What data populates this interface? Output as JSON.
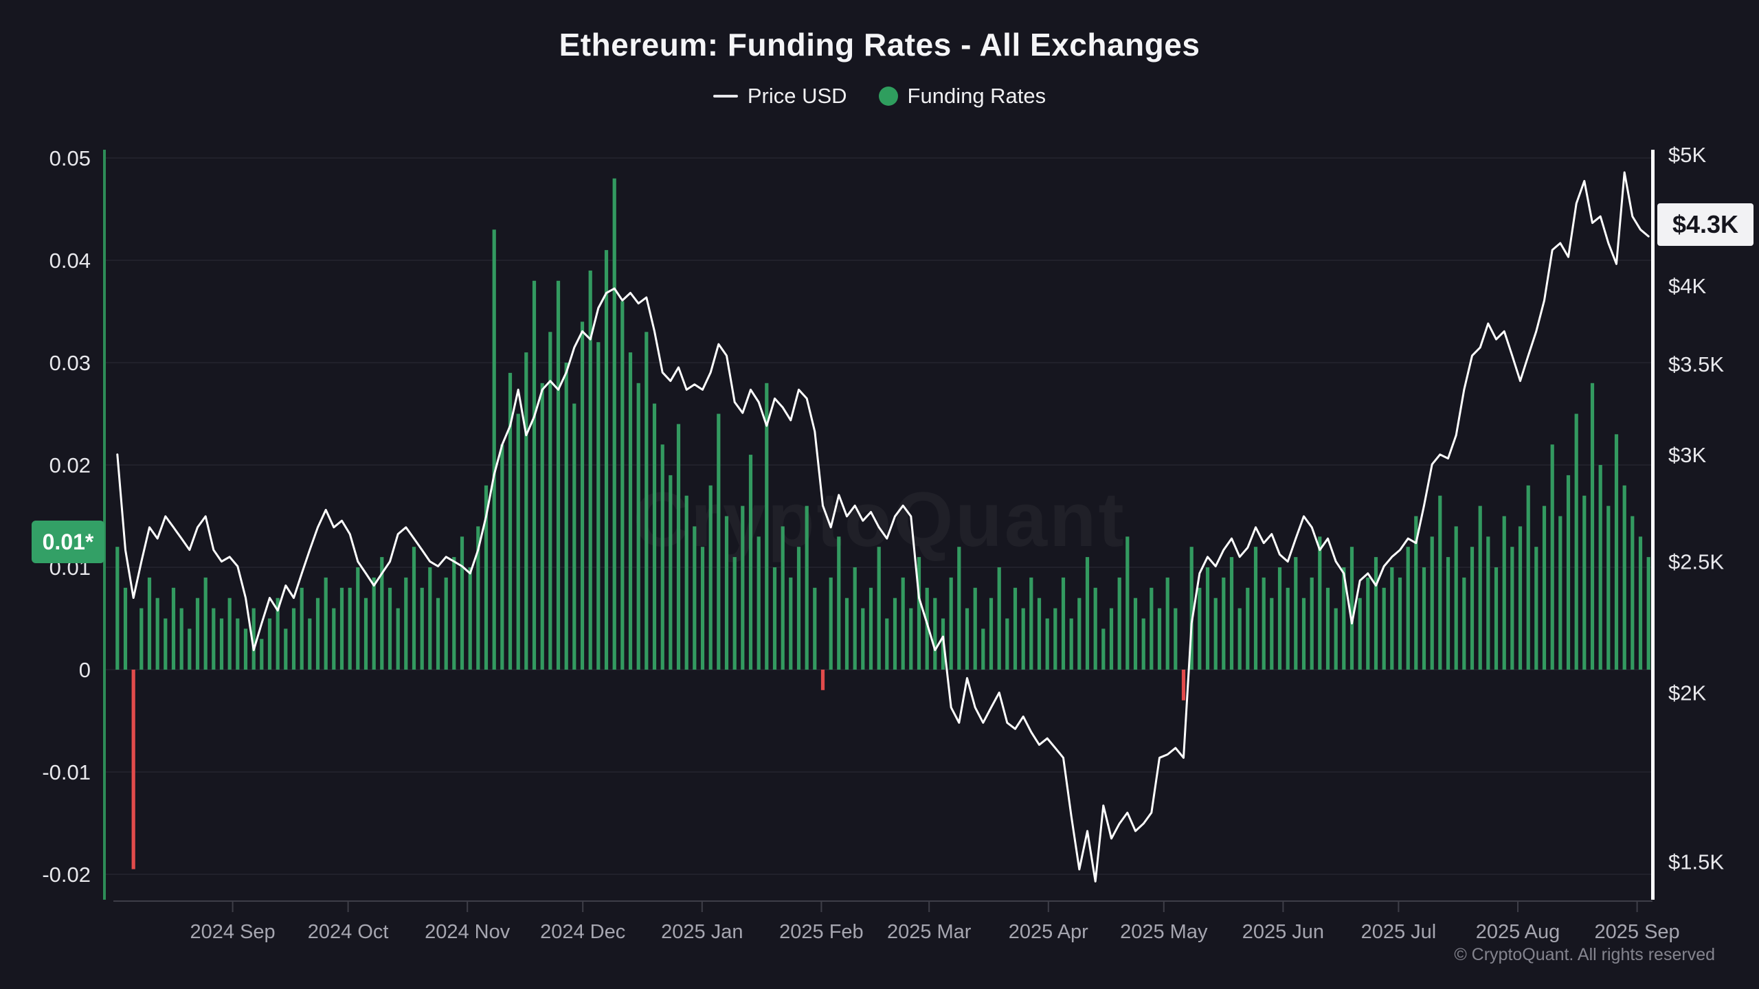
{
  "title": "Ethereum: Funding Rates - All Exchanges",
  "legend": {
    "price_label": "Price USD",
    "funding_label": "Funding Rates"
  },
  "watermark": "CryptoQuant",
  "footer": {
    "copyright": "© CryptoQuant. All rights reserved"
  },
  "colors": {
    "background": "#16161f",
    "bar_positive": "#339a60",
    "bar_negative": "#e14b4b",
    "price_line": "#ffffff",
    "left_axis_line": "#2d8c57",
    "right_axis_line": "#ffffff",
    "gridline": "#21212b",
    "axis_baseline": "#3e3e48",
    "x_label": "#a6a6b0",
    "y_label": "#e8e8ec",
    "left_badge_bg": "#33a066",
    "left_badge_text": "#ffffff",
    "right_badge_bg": "#f2f2f4",
    "right_badge_text": "#15151d",
    "watermark_text": "rgba(255,255,255,0.042)",
    "legend_dot": "#2f9e5e"
  },
  "left_axis": {
    "badge": "0.01*",
    "ticks": [
      {
        "label": "0.05",
        "value": 0.05
      },
      {
        "label": "0.04",
        "value": 0.04
      },
      {
        "label": "0.03",
        "value": 0.03
      },
      {
        "label": "0.02",
        "value": 0.02
      },
      {
        "label": "0.01",
        "value": 0.01
      },
      {
        "label": "0",
        "value": 0
      },
      {
        "label": "-0.01",
        "value": -0.01
      },
      {
        "label": "-0.02",
        "value": -0.02
      }
    ]
  },
  "right_axis": {
    "badge": "$4.3K",
    "ticks": [
      {
        "label": "$5K",
        "value": 5000
      },
      {
        "label": "$4K",
        "value": 4000
      },
      {
        "label": "$3.5K",
        "value": 3500
      },
      {
        "label": "$3K",
        "value": 3000
      },
      {
        "label": "$2.5K",
        "value": 2500
      },
      {
        "label": "$2K",
        "value": 2000
      },
      {
        "label": "$1.5K",
        "value": 1500
      }
    ]
  },
  "x_axis": {
    "labels": [
      "2024 Sep",
      "2024 Oct",
      "2024 Nov",
      "2024 Dec",
      "2025 Jan",
      "2025 Feb",
      "2025 Mar",
      "2025 Apr",
      "2025 May",
      "2025 Jun",
      "2025 Jul",
      "2025 Aug",
      "2025 Sep"
    ],
    "day_offsets": [
      31,
      61,
      92,
      122,
      153,
      184,
      212,
      243,
      273,
      304,
      334,
      365,
      396
    ],
    "total_days": 400
  },
  "chart_data": {
    "type": "mixed",
    "subtypes": [
      "bar",
      "line"
    ],
    "title": "Ethereum: Funding Rates - All Exchanges",
    "x_start": "2024 Aug",
    "x_end": "2025 Sep",
    "left_axis_label": "Funding Rates",
    "right_axis_label": "Price USD",
    "left_ylim": [
      -0.0255,
      0.0508
    ],
    "right_ylim_log": [
      1380,
      5100
    ],
    "grid": "horizontal-faint",
    "legend_position": "top-center",
    "latest_funding_rate": 0.01,
    "latest_price_usd": 4300,
    "series": [
      {
        "name": "Funding Rates",
        "type": "bar",
        "values": [
          0.012,
          0.008,
          -0.0195,
          0.006,
          0.009,
          0.007,
          0.005,
          0.008,
          0.006,
          0.004,
          0.007,
          0.009,
          0.006,
          0.005,
          0.007,
          0.005,
          0.004,
          0.006,
          0.003,
          0.005,
          0.007,
          0.004,
          0.006,
          0.008,
          0.005,
          0.007,
          0.009,
          0.006,
          0.008,
          0.008,
          0.01,
          0.007,
          0.009,
          0.011,
          0.008,
          0.006,
          0.009,
          0.012,
          0.008,
          0.01,
          0.007,
          0.009,
          0.011,
          0.013,
          0.01,
          0.014,
          0.018,
          0.043,
          0.022,
          0.029,
          0.025,
          0.031,
          0.038,
          0.028,
          0.033,
          0.038,
          0.03,
          0.026,
          0.034,
          0.039,
          0.032,
          0.041,
          0.048,
          0.036,
          0.031,
          0.028,
          0.033,
          0.026,
          0.022,
          0.019,
          0.024,
          0.017,
          0.014,
          0.012,
          0.018,
          0.025,
          0.015,
          0.011,
          0.016,
          0.021,
          0.013,
          0.028,
          0.01,
          0.014,
          0.009,
          0.012,
          0.016,
          0.008,
          -0.002,
          0.009,
          0.013,
          0.007,
          0.01,
          0.006,
          0.008,
          0.012,
          0.005,
          0.007,
          0.009,
          0.006,
          0.011,
          0.008,
          0.007,
          0.005,
          0.009,
          0.012,
          0.006,
          0.008,
          0.004,
          0.007,
          0.01,
          0.005,
          0.008,
          0.006,
          0.009,
          0.007,
          0.005,
          0.006,
          0.009,
          0.005,
          0.007,
          0.011,
          0.008,
          0.004,
          0.006,
          0.009,
          0.013,
          0.007,
          0.005,
          0.008,
          0.006,
          0.009,
          0.006,
          -0.003,
          0.012,
          0.008,
          0.01,
          0.007,
          0.009,
          0.011,
          0.006,
          0.008,
          0.012,
          0.009,
          0.007,
          0.01,
          0.008,
          0.011,
          0.007,
          0.009,
          0.013,
          0.008,
          0.006,
          0.01,
          0.012,
          0.007,
          0.009,
          0.011,
          0.008,
          0.01,
          0.009,
          0.012,
          0.015,
          0.01,
          0.013,
          0.017,
          0.011,
          0.014,
          0.009,
          0.012,
          0.016,
          0.013,
          0.01,
          0.015,
          0.012,
          0.014,
          0.018,
          0.012,
          0.016,
          0.022,
          0.015,
          0.019,
          0.025,
          0.017,
          0.028,
          0.02,
          0.016,
          0.023,
          0.018,
          0.015,
          0.013,
          0.011
        ]
      },
      {
        "name": "Price USD",
        "type": "line",
        "values": [
          3000,
          2550,
          2350,
          2500,
          2650,
          2600,
          2700,
          2650,
          2600,
          2550,
          2650,
          2700,
          2550,
          2500,
          2520,
          2480,
          2350,
          2150,
          2250,
          2350,
          2300,
          2400,
          2350,
          2450,
          2550,
          2650,
          2730,
          2650,
          2680,
          2620,
          2500,
          2450,
          2400,
          2450,
          2500,
          2620,
          2650,
          2600,
          2550,
          2500,
          2480,
          2520,
          2500,
          2480,
          2450,
          2550,
          2700,
          2900,
          3050,
          3150,
          3350,
          3100,
          3200,
          3350,
          3400,
          3350,
          3450,
          3600,
          3700,
          3650,
          3850,
          3950,
          3980,
          3900,
          3950,
          3880,
          3920,
          3700,
          3450,
          3400,
          3480,
          3350,
          3380,
          3350,
          3450,
          3620,
          3550,
          3280,
          3220,
          3350,
          3280,
          3150,
          3300,
          3250,
          3180,
          3350,
          3300,
          3120,
          2750,
          2650,
          2800,
          2700,
          2750,
          2680,
          2720,
          2650,
          2600,
          2700,
          2750,
          2700,
          2350,
          2250,
          2150,
          2200,
          1950,
          1900,
          2050,
          1950,
          1900,
          1950,
          2000,
          1900,
          1880,
          1920,
          1870,
          1830,
          1850,
          1820,
          1790,
          1620,
          1480,
          1580,
          1450,
          1650,
          1560,
          1600,
          1630,
          1580,
          1600,
          1630,
          1790,
          1800,
          1820,
          1790,
          2250,
          2450,
          2520,
          2480,
          2550,
          2600,
          2520,
          2560,
          2650,
          2580,
          2620,
          2530,
          2500,
          2600,
          2700,
          2650,
          2550,
          2600,
          2500,
          2450,
          2250,
          2420,
          2450,
          2400,
          2480,
          2520,
          2550,
          2600,
          2580,
          2750,
          2950,
          3000,
          2980,
          3100,
          3350,
          3550,
          3600,
          3750,
          3650,
          3700,
          3550,
          3400,
          3550,
          3700,
          3900,
          4250,
          4300,
          4200,
          4600,
          4780,
          4450,
          4500,
          4300,
          4150,
          4850,
          4500,
          4400,
          4350
        ]
      }
    ]
  }
}
